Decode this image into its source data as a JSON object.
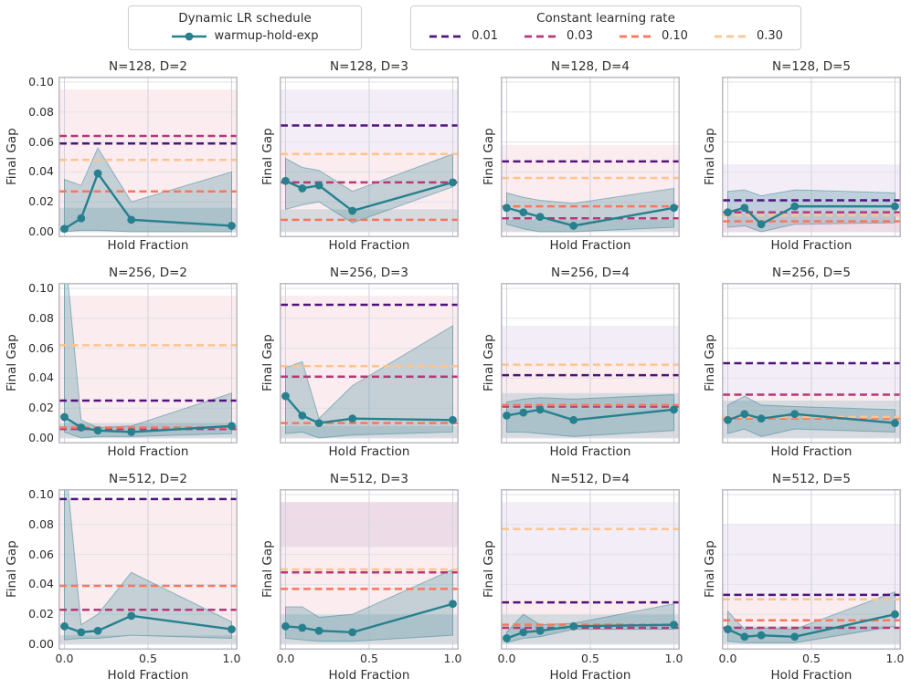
{
  "legend_dynamic": {
    "title": "Dynamic LR schedule",
    "series_label": "warmup-hold-exp",
    "color": "#26808e"
  },
  "legend_constant": {
    "title": "Constant learning rate",
    "items": [
      {
        "label": "0.01",
        "color": "#51127c"
      },
      {
        "label": "0.03",
        "color": "#b73779"
      },
      {
        "label": "0.10",
        "color": "#f8765c"
      },
      {
        "label": "0.30",
        "color": "#fdc48f"
      }
    ]
  },
  "chart_data": {
    "type": "line",
    "x": [
      0.0,
      0.1,
      0.2,
      0.4,
      1.0
    ],
    "xlabel": "Hold Fraction",
    "ylabel": "Final Gap",
    "xlim": [
      0,
      1
    ],
    "ylim": [
      0,
      0.1
    ],
    "xticks": [
      0.0,
      0.5,
      1.0
    ],
    "xtick_labels": [
      "0.0",
      "0.5",
      "1.0"
    ],
    "yticks": [
      0.0,
      0.02,
      0.04,
      0.06,
      0.08,
      0.1
    ],
    "ytick_labels": [
      "0.00",
      "0.02",
      "0.04",
      "0.06",
      "0.08",
      "0.10"
    ],
    "grid": true,
    "legend_position": "top",
    "series_color": "#26808e",
    "band_fill": "rgba(38,125,140,0.25)",
    "band_edge": "rgba(38,125,140,0.45)",
    "const_order": [
      "0.01",
      "0.03",
      "0.10",
      "0.30"
    ],
    "const_colors": {
      "0.01": "#51127c",
      "0.03": "#b73779",
      "0.10": "#f8765c",
      "0.30": "#fdc48f"
    },
    "bg_colors": {
      "pink": "rgba(214,96,125,0.12)",
      "lavender": "rgba(123,80,178,0.10)",
      "teal": "rgba(38,125,140,0.16)",
      "peach": "rgba(253,199,140,0.28)"
    },
    "subplots": [
      {
        "title": "N=128, D=2",
        "y": [
          0.002,
          0.009,
          0.039,
          0.008,
          0.004
        ],
        "band_lower": [
          0.0,
          0.001,
          0.001,
          0.0,
          0.0
        ],
        "band_upper": [
          0.035,
          0.031,
          0.056,
          0.02,
          0.04
        ],
        "const_lines": {
          "0.01": 0.059,
          "0.03": 0.064,
          "0.10": 0.027,
          "0.30": 0.048
        },
        "bg_bands": [
          {
            "color": "pink",
            "y0": 0,
            "y1": 0.095
          },
          {
            "color": "teal",
            "y0": 0,
            "y1": 0.016
          }
        ]
      },
      {
        "title": "N=128, D=3",
        "y": [
          0.034,
          0.029,
          0.031,
          0.014,
          0.033
        ],
        "band_lower": [
          0.015,
          0.018,
          0.02,
          0.006,
          0.03
        ],
        "band_upper": [
          0.049,
          0.043,
          0.041,
          0.027,
          0.052
        ],
        "const_lines": {
          "0.01": 0.071,
          "0.03": 0.033,
          "0.10": 0.008,
          "0.30": 0.052
        },
        "bg_bands": [
          {
            "color": "pink",
            "y0": 0,
            "y1": 0.055
          },
          {
            "color": "lavender",
            "y0": 0.055,
            "y1": 0.095
          },
          {
            "color": "teal",
            "y0": 0,
            "y1": 0.015
          }
        ]
      },
      {
        "title": "N=128, D=4",
        "y": [
          0.016,
          0.013,
          0.01,
          0.004,
          0.016
        ],
        "band_lower": [
          0.005,
          0.002,
          0.0,
          0.0,
          0.003
        ],
        "band_upper": [
          0.026,
          0.023,
          0.021,
          0.019,
          0.029
        ],
        "const_lines": {
          "0.01": 0.047,
          "0.03": 0.009,
          "0.10": 0.017,
          "0.30": 0.036
        },
        "bg_bands": [
          {
            "color": "pink",
            "y0": 0,
            "y1": 0.058
          },
          {
            "color": "teal",
            "y0": 0,
            "y1": 0.008
          }
        ]
      },
      {
        "title": "N=128, D=5",
        "y": [
          0.013,
          0.016,
          0.005,
          0.017,
          0.017
        ],
        "band_lower": [
          0.003,
          0.004,
          0.0,
          0.005,
          0.006
        ],
        "band_upper": [
          0.027,
          0.028,
          0.024,
          0.028,
          0.026
        ],
        "const_lines": {
          "0.01": 0.021,
          "0.03": 0.013,
          "0.10": 0.007,
          "0.30": 0.011
        },
        "bg_bands": [
          {
            "color": "lavender",
            "y0": 0,
            "y1": 0.045
          },
          {
            "color": "pink",
            "y0": 0,
            "y1": 0.012
          }
        ]
      },
      {
        "title": "N=256, D=2",
        "y": [
          0.014,
          0.007,
          0.005,
          0.004,
          0.008
        ],
        "band_lower": [
          0.004,
          0.0,
          0.001,
          0.001,
          0.003
        ],
        "band_upper": [
          0.13,
          0.012,
          0.007,
          0.008,
          0.03
        ],
        "const_lines": {
          "0.01": 0.025,
          "0.03": 0.006,
          "0.10": 0.007,
          "0.30": 0.062
        },
        "bg_bands": [
          {
            "color": "pink",
            "y0": 0,
            "y1": 0.095
          },
          {
            "color": "teal",
            "y0": 0,
            "y1": 0.01
          }
        ]
      },
      {
        "title": "N=256, D=3",
        "y": [
          0.028,
          0.015,
          0.01,
          0.013,
          0.012
        ],
        "band_lower": [
          0.003,
          0.004,
          0.0,
          0.002,
          0.004
        ],
        "band_upper": [
          0.047,
          0.051,
          0.013,
          0.035,
          0.075
        ],
        "const_lines": {
          "0.01": 0.089,
          "0.03": 0.041,
          "0.10": 0.01,
          "0.30": 0.048
        },
        "bg_bands": [
          {
            "color": "pink",
            "y0": 0,
            "y1": 0.095
          },
          {
            "color": "teal",
            "y0": 0,
            "y1": 0.008
          }
        ]
      },
      {
        "title": "N=256, D=4",
        "y": [
          0.015,
          0.017,
          0.019,
          0.012,
          0.019
        ],
        "band_lower": [
          0.004,
          0.004,
          0.003,
          0.001,
          0.005
        ],
        "band_upper": [
          0.024,
          0.026,
          0.027,
          0.026,
          0.029
        ],
        "const_lines": {
          "0.01": 0.042,
          "0.03": 0.021,
          "0.10": 0.022,
          "0.30": 0.049
        },
        "bg_bands": [
          {
            "color": "pink",
            "y0": 0,
            "y1": 0.05
          },
          {
            "color": "lavender",
            "y0": 0.05,
            "y1": 0.075
          },
          {
            "color": "teal",
            "y0": 0,
            "y1": 0.03
          }
        ]
      },
      {
        "title": "N=256, D=5",
        "y": [
          0.012,
          0.016,
          0.013,
          0.016,
          0.01
        ],
        "band_lower": [
          0.003,
          0.006,
          0.001,
          0.006,
          0.004
        ],
        "band_upper": [
          0.022,
          0.028,
          0.022,
          0.021,
          0.019
        ],
        "const_lines": {
          "0.01": 0.05,
          "0.03": 0.029,
          "0.10": 0.013,
          "0.30": 0.014
        },
        "bg_bands": [
          {
            "color": "pink",
            "y0": 0,
            "y1": 0.03
          },
          {
            "color": "lavender",
            "y0": 0.03,
            "y1": 0.05
          },
          {
            "color": "teal",
            "y0": 0,
            "y1": 0.025
          }
        ]
      },
      {
        "title": "N=512, D=2",
        "y": [
          0.012,
          0.008,
          0.009,
          0.019,
          0.01
        ],
        "band_lower": [
          0.003,
          0.004,
          0.004,
          0.006,
          0.004
        ],
        "band_upper": [
          0.13,
          0.013,
          0.02,
          0.048,
          0.015
        ],
        "const_lines": {
          "0.01": 0.097,
          "0.03": 0.023,
          "0.10": 0.039,
          "0.30": null
        },
        "bg_bands": [
          {
            "color": "pink",
            "y0": 0,
            "y1": 0.097
          },
          {
            "color": "teal",
            "y0": 0,
            "y1": 0.006
          }
        ]
      },
      {
        "title": "N=512, D=3",
        "y": [
          0.012,
          0.011,
          0.009,
          0.008,
          0.027
        ],
        "band_lower": [
          0.004,
          0.003,
          0.002,
          0.002,
          0.006
        ],
        "band_upper": [
          0.025,
          0.025,
          0.018,
          0.02,
          0.05
        ],
        "const_lines": {
          "0.01": null,
          "0.03": 0.048,
          "0.10": 0.037,
          "0.30": 0.05
        },
        "bg_bands": [
          {
            "color": "pink",
            "y0": 0,
            "y1": 0.095
          },
          {
            "color": "lavender",
            "y0": 0.065,
            "y1": 0.095
          },
          {
            "color": "teal",
            "y0": 0,
            "y1": 0.02
          }
        ]
      },
      {
        "title": "N=512, D=4",
        "y": [
          0.004,
          0.008,
          0.009,
          0.012,
          0.013
        ],
        "band_lower": [
          0.001,
          0.004,
          0.005,
          0.01,
          0.01
        ],
        "band_upper": [
          0.008,
          0.02,
          0.013,
          0.014,
          0.027
        ],
        "const_lines": {
          "0.01": 0.028,
          "0.03": 0.011,
          "0.10": 0.013,
          "0.30": 0.077
        },
        "bg_bands": [
          {
            "color": "pink",
            "y0": 0,
            "y1": 0.03
          },
          {
            "color": "lavender",
            "y0": 0.03,
            "y1": 0.095
          },
          {
            "color": "teal",
            "y0": 0,
            "y1": 0.02
          }
        ]
      },
      {
        "title": "N=512, D=5",
        "y": [
          0.01,
          0.005,
          0.006,
          0.005,
          0.02
        ],
        "band_lower": [
          0.002,
          0.001,
          0.001,
          0.001,
          0.012
        ],
        "band_upper": [
          0.022,
          0.01,
          0.011,
          0.01,
          0.035
        ],
        "const_lines": {
          "0.01": 0.033,
          "0.03": 0.011,
          "0.10": 0.016,
          "0.30": 0.03
        },
        "bg_bands": [
          {
            "color": "pink",
            "y0": 0,
            "y1": 0.03
          },
          {
            "color": "lavender",
            "y0": 0.03,
            "y1": 0.08
          },
          {
            "color": "teal",
            "y0": 0,
            "y1": 0.012
          }
        ]
      }
    ]
  }
}
